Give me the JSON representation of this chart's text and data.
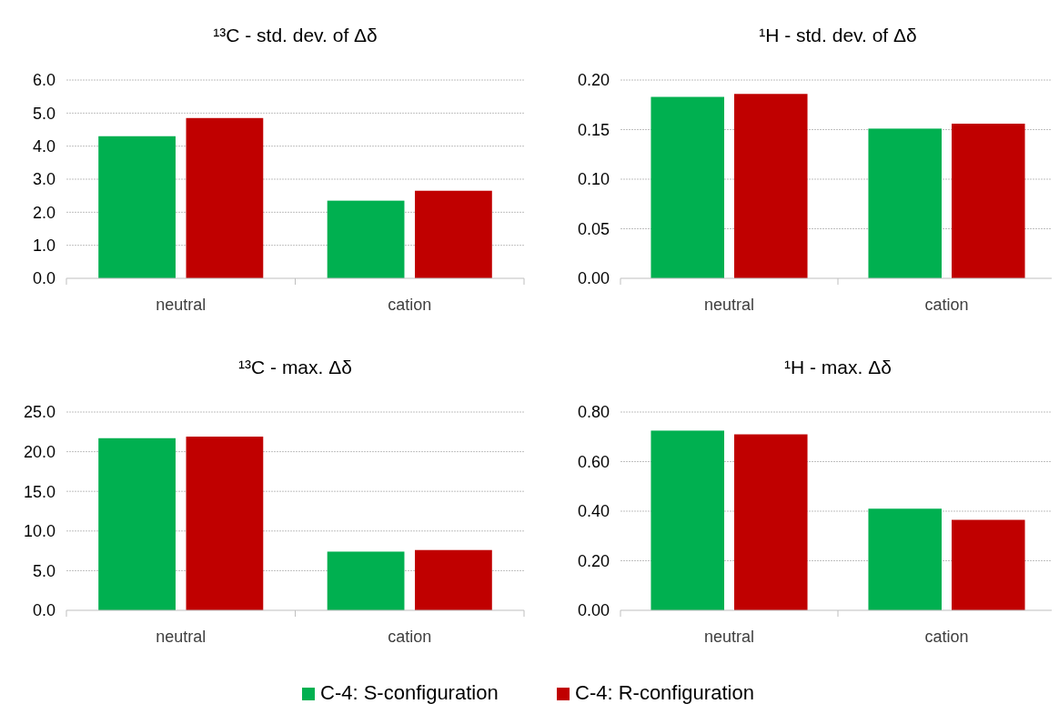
{
  "chart_data": [
    {
      "type": "bar",
      "title": "¹³C - std. dev. of Δδ",
      "categories": [
        "neutral",
        "cation"
      ],
      "series": [
        {
          "name": "C-4: S-configuration",
          "color": "#00b050",
          "values": [
            4.3,
            2.35
          ]
        },
        {
          "name": "C-4: R-configuration",
          "color": "#c00000",
          "values": [
            4.85,
            2.65
          ]
        }
      ],
      "ylim": [
        0,
        6
      ],
      "yticks": [
        {
          "value": 0,
          "label": "0.0"
        },
        {
          "value": 1,
          "label": "1.0"
        },
        {
          "value": 2,
          "label": "2.0"
        },
        {
          "value": 3,
          "label": "3.0"
        },
        {
          "value": 4,
          "label": "4.0"
        },
        {
          "value": 5,
          "label": "5.0"
        },
        {
          "value": 6,
          "label": "6.0"
        }
      ],
      "grid": "y",
      "legend": "bottom"
    },
    {
      "type": "bar",
      "title": "¹H - std. dev. of Δδ",
      "categories": [
        "neutral",
        "cation"
      ],
      "series": [
        {
          "color": "#00b050",
          "values": [
            0.183,
            0.151
          ]
        },
        {
          "color": "#c00000",
          "values": [
            0.186,
            0.156
          ]
        }
      ],
      "ylim": [
        0,
        0.2
      ],
      "yticks": [
        {
          "value": 0,
          "label": "0.00"
        },
        {
          "value": 0.05,
          "label": "0.05"
        },
        {
          "value": 0.1,
          "label": "0.10"
        },
        {
          "value": 0.15,
          "label": "0.15"
        },
        {
          "value": 0.2,
          "label": "0.20"
        }
      ],
      "grid": "y"
    },
    {
      "type": "bar",
      "title": "¹³C - max. Δδ",
      "categories": [
        "neutral",
        "cation"
      ],
      "series": [
        {
          "color": "#00b050",
          "values": [
            21.7,
            7.4
          ]
        },
        {
          "color": "#c00000",
          "values": [
            21.9,
            7.6
          ]
        }
      ],
      "ylim": [
        0,
        25
      ],
      "yticks": [
        {
          "value": 0,
          "label": "0.0"
        },
        {
          "value": 5,
          "label": "5.0"
        },
        {
          "value": 10,
          "label": "10.0"
        },
        {
          "value": 15,
          "label": "15.0"
        },
        {
          "value": 20,
          "label": "20.0"
        },
        {
          "value": 25,
          "label": "25.0"
        }
      ],
      "grid": "y"
    },
    {
      "type": "bar",
      "title": "¹H - max. Δδ",
      "categories": [
        "neutral",
        "cation"
      ],
      "series": [
        {
          "color": "#00b050",
          "values": [
            0.725,
            0.41
          ]
        },
        {
          "color": "#c00000",
          "values": [
            0.71,
            0.365
          ]
        }
      ],
      "ylim": [
        0,
        0.8
      ],
      "yticks": [
        {
          "value": 0,
          "label": "0.00"
        },
        {
          "value": 0.2,
          "label": "0.20"
        },
        {
          "value": 0.4,
          "label": "0.40"
        },
        {
          "value": 0.6,
          "label": "0.60"
        },
        {
          "value": 0.8,
          "label": "0.80"
        }
      ],
      "grid": "y"
    }
  ]
}
